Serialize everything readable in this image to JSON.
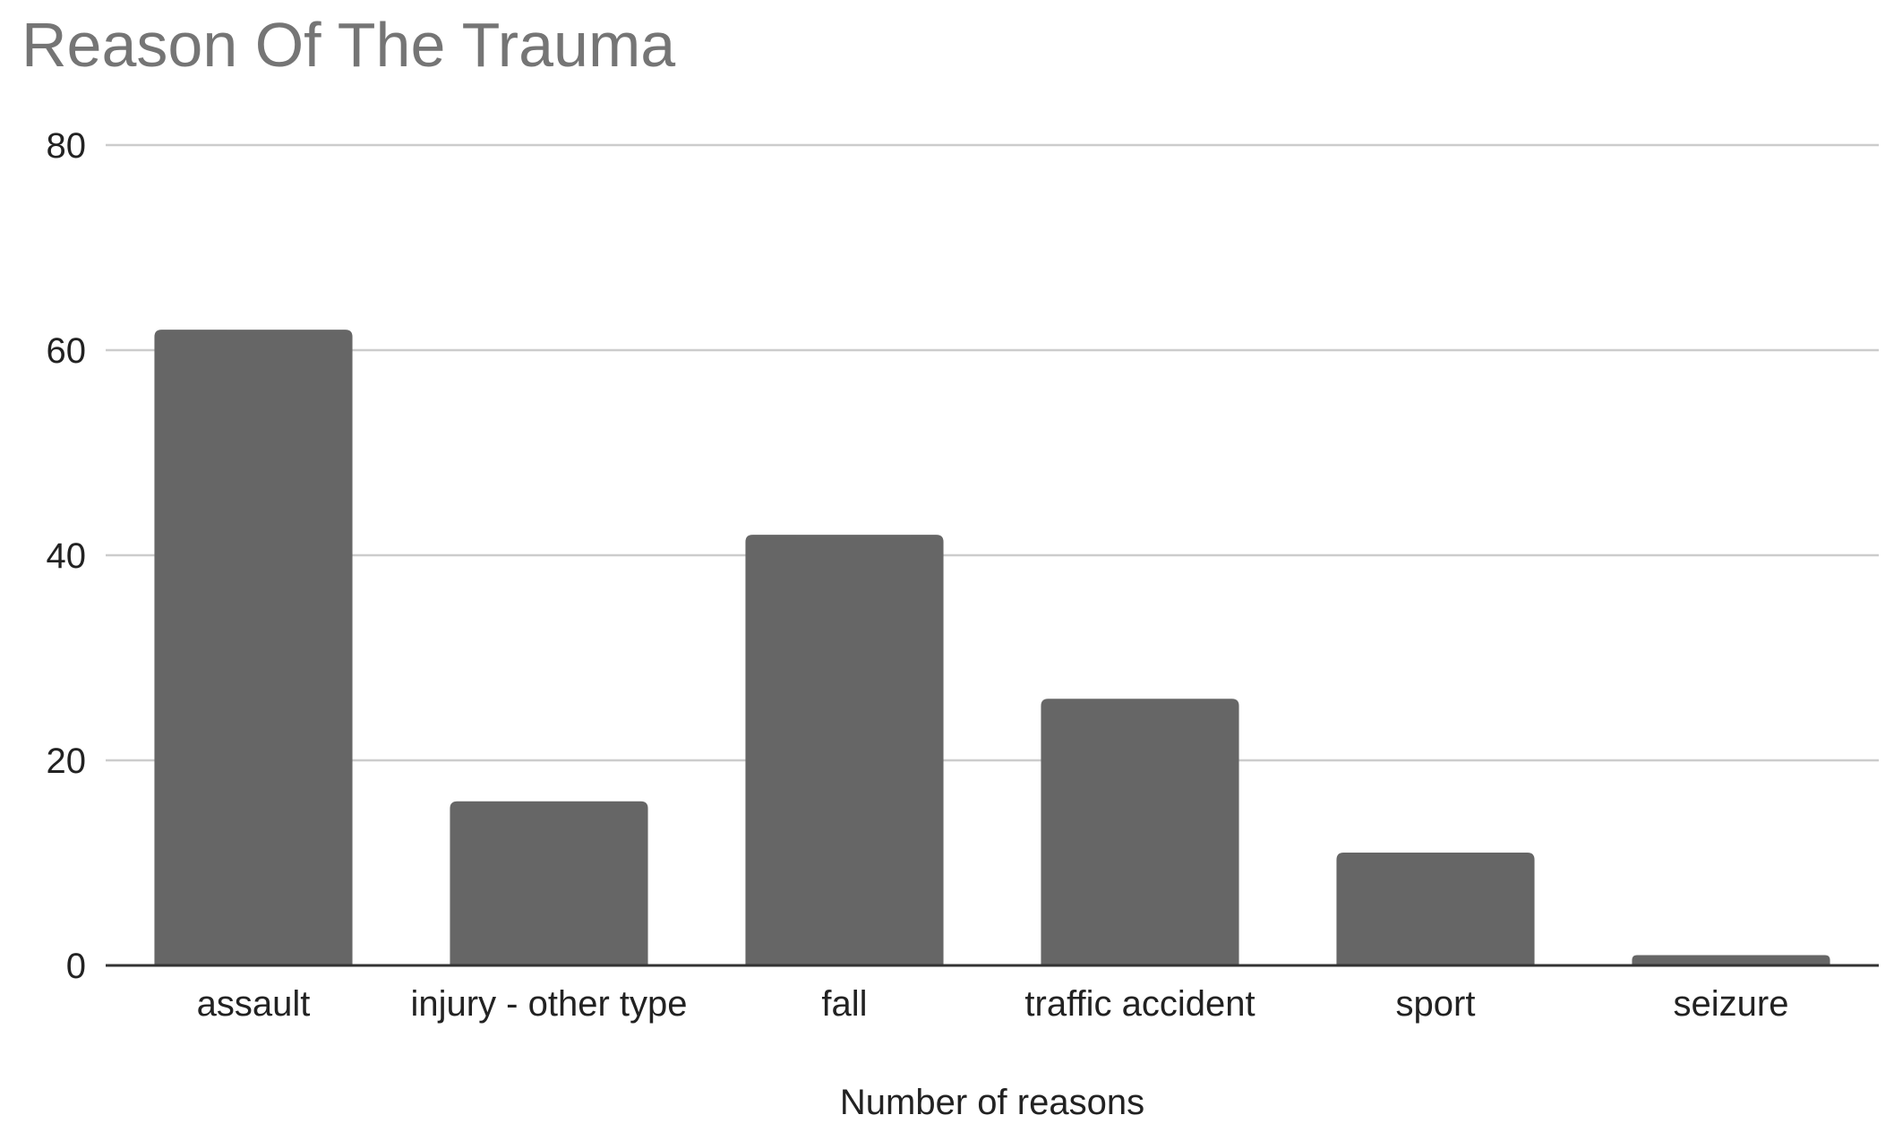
{
  "chart_data": {
    "type": "bar",
    "title": "Reason Of The Trauma",
    "xlabel": "Number of reasons",
    "ylabel": "",
    "categories": [
      "assault",
      "injury - other type",
      "fall",
      "traffic accident",
      "sport",
      "seizure"
    ],
    "values": [
      62,
      16,
      42,
      26,
      11,
      1
    ],
    "ylim": [
      0,
      80
    ],
    "yticks": [
      "0",
      "20",
      "40",
      "60",
      "80"
    ],
    "grid": true,
    "legend": "none",
    "colors": {
      "bar": "#666666",
      "grid": "#cccccc",
      "axis": "#333333",
      "title": "#757575",
      "text": "#222222"
    }
  }
}
